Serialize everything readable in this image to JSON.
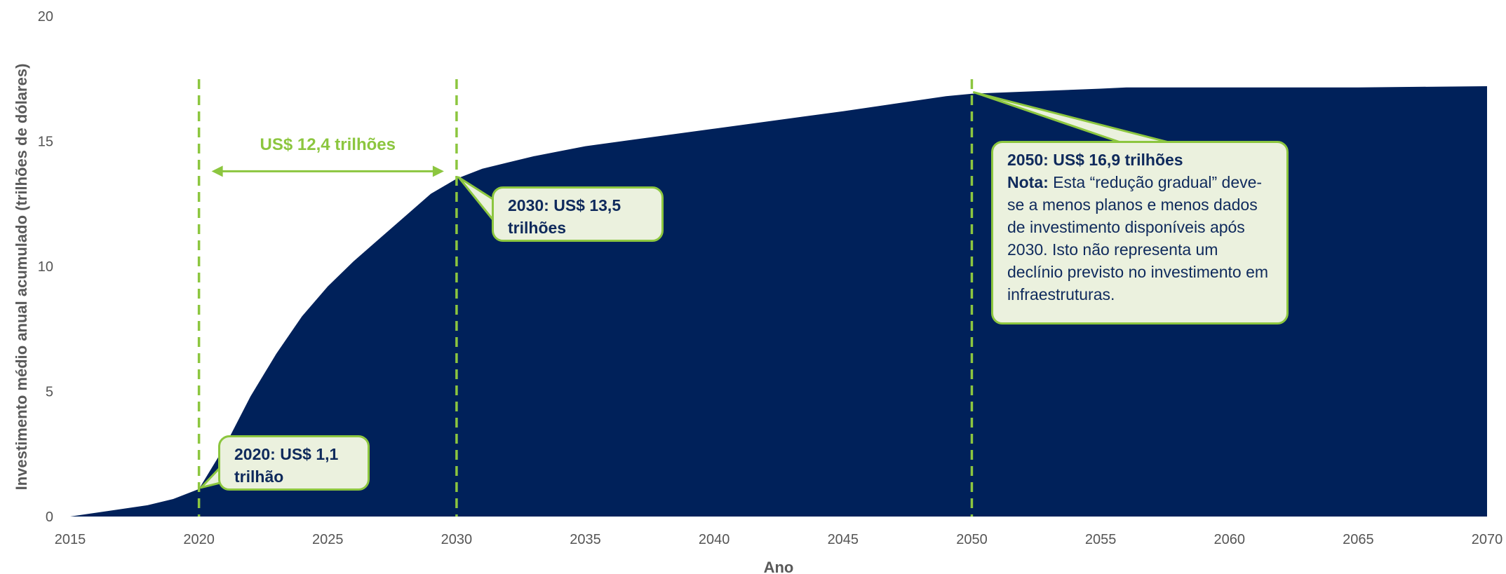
{
  "chart_data": {
    "type": "area",
    "x": [
      2015,
      2016,
      2017,
      2018,
      2019,
      2020,
      2021,
      2022,
      2023,
      2024,
      2025,
      2026,
      2027,
      2028,
      2029,
      2030,
      2031,
      2032,
      2033,
      2034,
      2035,
      2040,
      2045,
      2049,
      2050,
      2055,
      2056,
      2060,
      2065,
      2070
    ],
    "values": [
      0.0,
      0.15,
      0.3,
      0.45,
      0.7,
      1.1,
      2.8,
      4.8,
      6.5,
      8.0,
      9.2,
      10.2,
      11.1,
      12.0,
      12.9,
      13.5,
      13.9,
      14.15,
      14.4,
      14.6,
      14.8,
      15.5,
      16.2,
      16.8,
      16.9,
      17.1,
      17.15,
      17.15,
      17.15,
      17.2
    ],
    "xlabel": "Ano",
    "ylabel": "Investimento médio anual acumulado (trilhões de dólares)",
    "xlim": [
      2015,
      2070
    ],
    "ylim": [
      0,
      20
    ],
    "xticks": [
      2015,
      2020,
      2025,
      2030,
      2035,
      2040,
      2045,
      2050,
      2055,
      2060,
      2065,
      2070
    ],
    "yticks": [
      0,
      5,
      10,
      15,
      20
    ],
    "grid": false,
    "colors": {
      "area": "#00215a",
      "accent": "#8cc63f",
      "callout_fill": "#ebf1de",
      "callout_text": "#0f2a5c"
    },
    "vlines": [
      2020,
      2030,
      2050
    ],
    "span": {
      "from": 2020,
      "to": 2030,
      "y": 13.8,
      "label": "US$ 12,4 trilhões"
    },
    "annotations": [
      {
        "id": "a2020",
        "x": 2020,
        "y": 1.1,
        "title": "2020: US$ 1,1 trilhão"
      },
      {
        "id": "a2030",
        "x": 2030,
        "y": 13.5,
        "title": "2030: US$ 13,5 trilhões"
      },
      {
        "id": "a2050",
        "x": 2050,
        "y": 16.9,
        "title": "2050: US$ 16,9 trilhões",
        "note_label": "Nota:",
        "note": "Esta “redução gradual” deve-se a menos planos e menos dados de investimento disponíveis após 2030. Isto não representa um declínio previsto no investimento em infraestruturas."
      }
    ]
  }
}
